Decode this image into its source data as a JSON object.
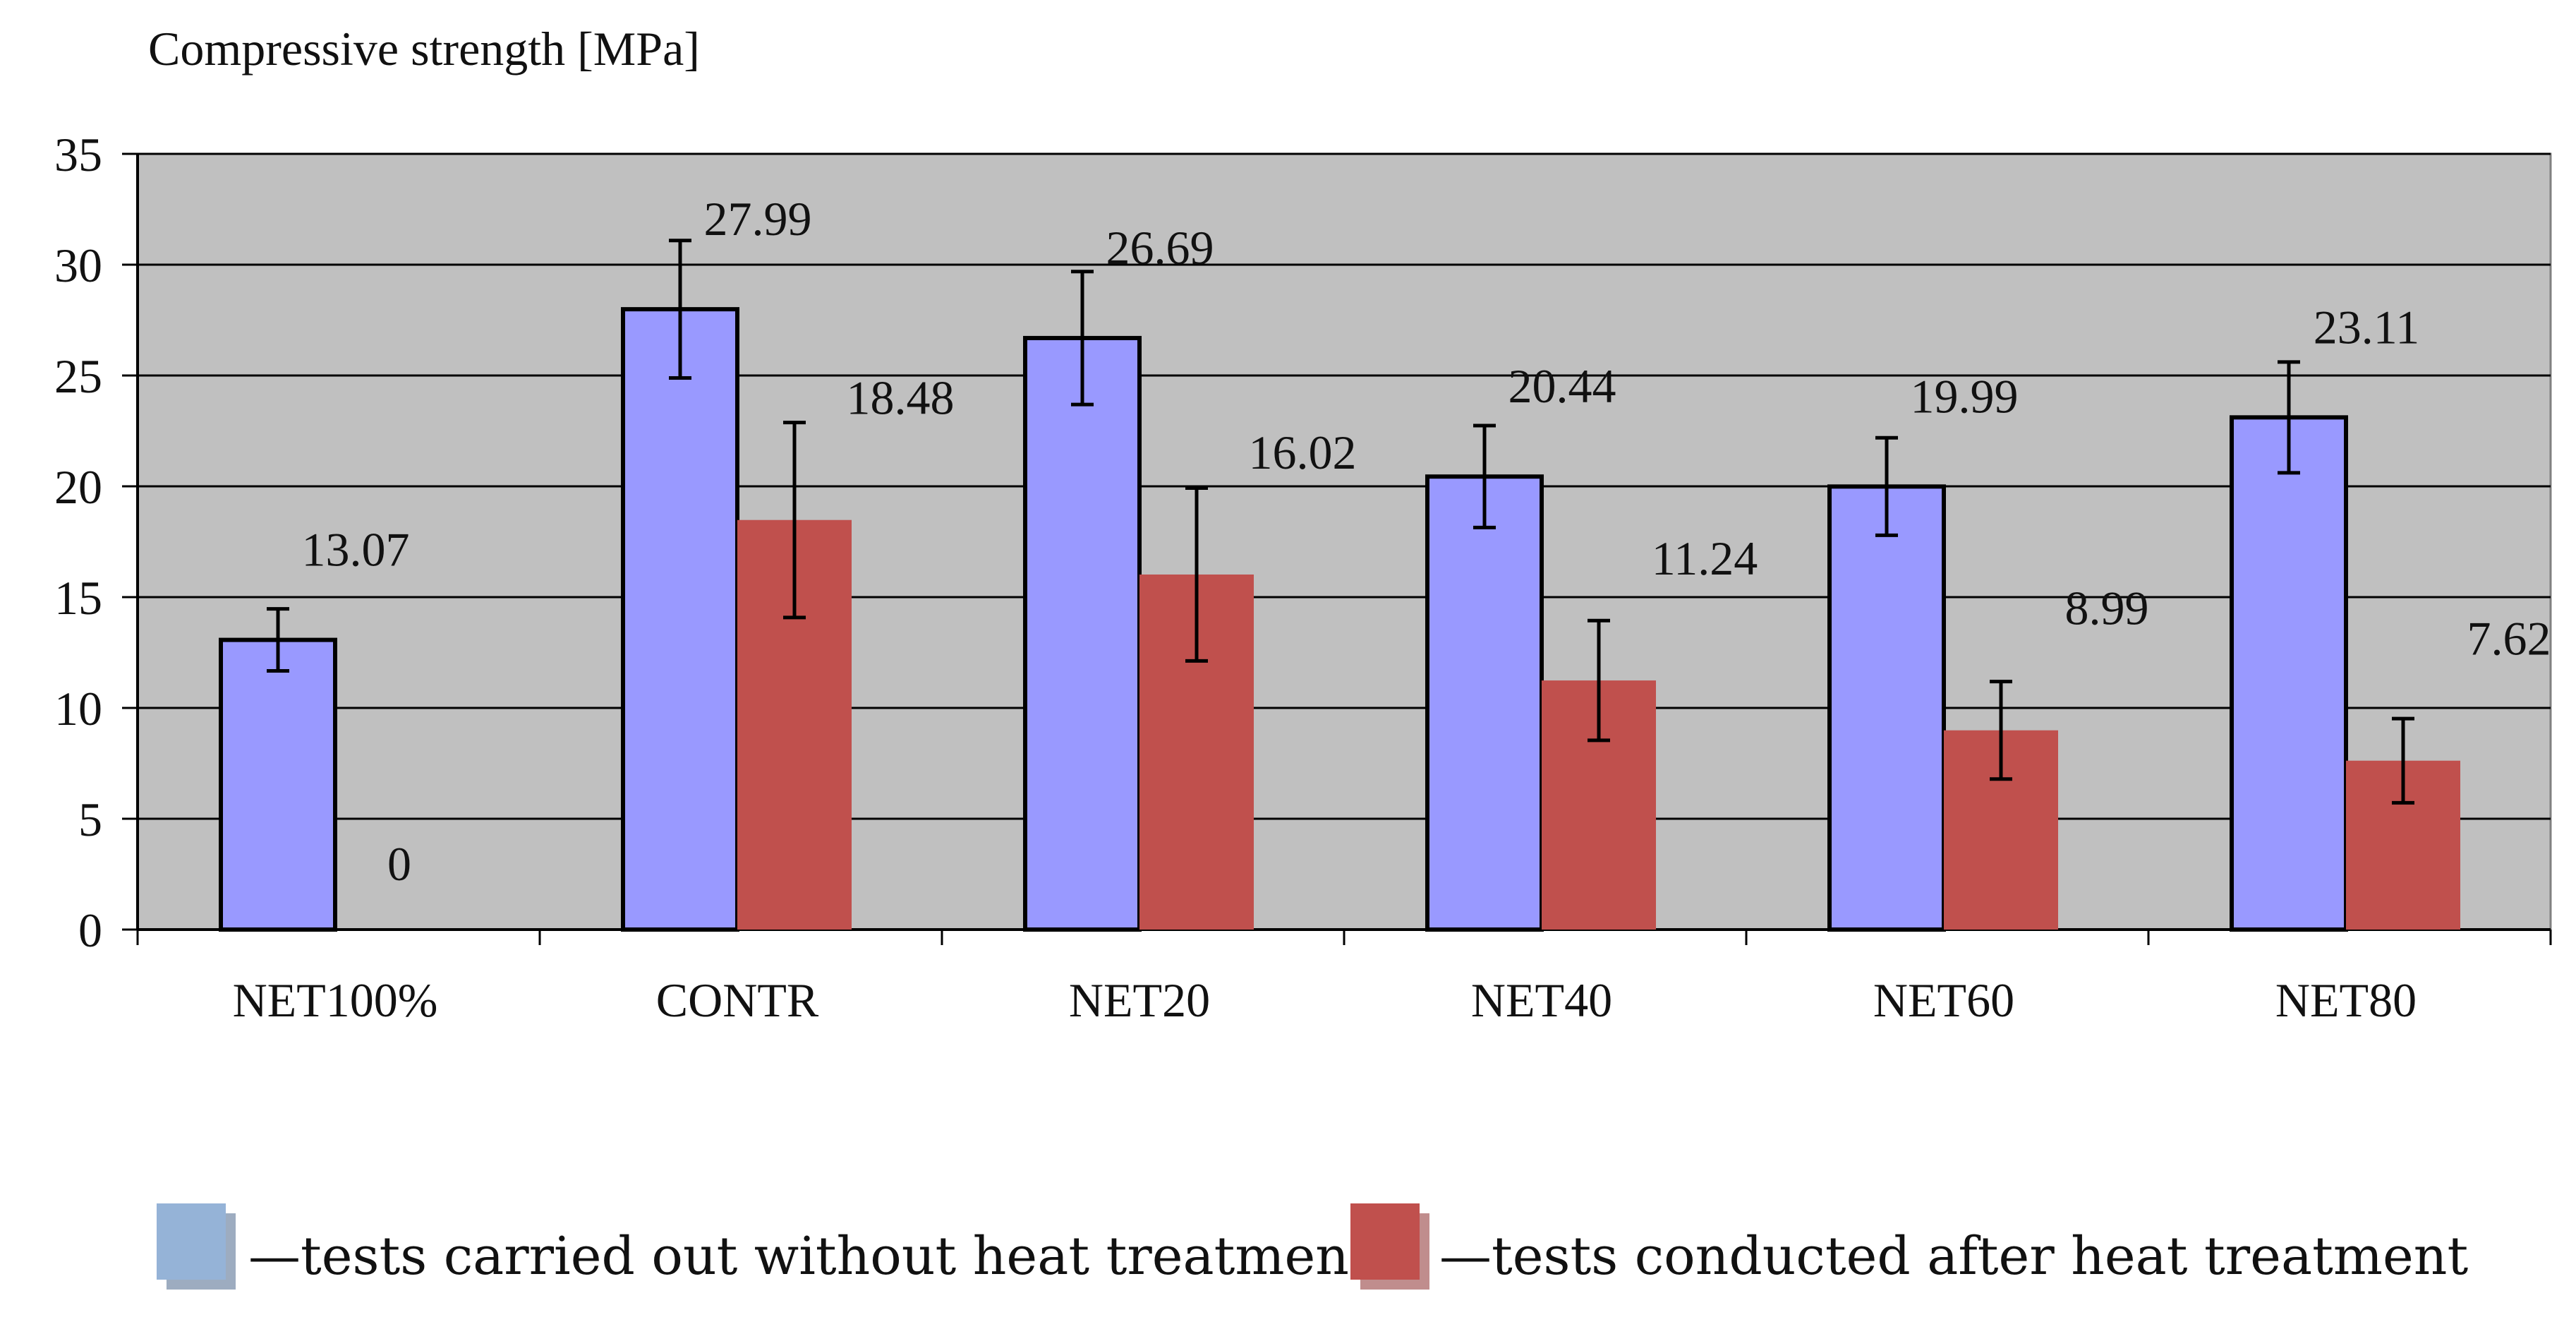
{
  "chart_data": {
    "type": "bar",
    "ylabel": "Compressive strength [MPa]",
    "xlabel": "",
    "ylim": [
      0,
      35
    ],
    "yticks": [
      0,
      5,
      10,
      15,
      20,
      25,
      30,
      35
    ],
    "grid": true,
    "categories": [
      "NET100%",
      "CONTR",
      "NET20",
      "NET40",
      "NET60",
      "NET80"
    ],
    "series": [
      {
        "name": "tests carried out without heat treatment",
        "color": "#9999ff",
        "values": [
          13.07,
          27.99,
          26.69,
          20.44,
          19.99,
          23.11
        ],
        "error": [
          1.4,
          3.1,
          3.0,
          2.3,
          2.2,
          2.5
        ],
        "labels": [
          "13.07",
          "27.99",
          "26.69",
          "20.44",
          "19.99",
          "23.11"
        ]
      },
      {
        "name": "tests conducted after heat treatment",
        "color": "#c0504d",
        "values": [
          0,
          18.48,
          16.02,
          11.24,
          8.99,
          7.62
        ],
        "error": [
          0,
          4.4,
          3.9,
          2.7,
          2.2,
          1.9
        ],
        "labels": [
          "0",
          "18.48",
          "16.02",
          "11.24",
          "8.99",
          "7.62"
        ]
      }
    ],
    "legend": {
      "position": "bottom",
      "items": [
        {
          "prefix": "—",
          "text": "tests carried out without heat treatment",
          "color": "#95b3d7"
        },
        {
          "prefix": "—",
          "text": "tests conducted after heat treatment",
          "color": "#c0504d"
        }
      ]
    },
    "plot_background": "#c0c0c0"
  }
}
